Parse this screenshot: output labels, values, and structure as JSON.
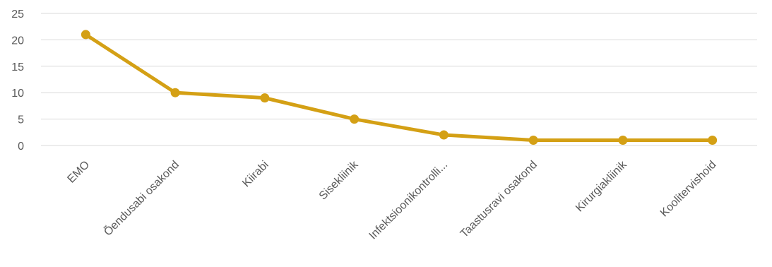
{
  "chart_data": {
    "type": "line",
    "categories": [
      "EMO",
      "Õendusabi osakond",
      "Kiirabi",
      "Sisekliinik",
      "Infektsioonikontrolli...",
      "Taastusravi osakond",
      "Kirurgiakliinik",
      "Koolitervishoid"
    ],
    "series": [
      {
        "values": [
          21,
          10,
          9,
          5,
          2,
          1,
          1,
          1
        ],
        "color": "#d4a015"
      }
    ],
    "title": "",
    "xlabel": "",
    "ylabel": "",
    "ylim": [
      0,
      25
    ],
    "yticks": [
      0,
      5,
      10,
      15,
      20,
      25
    ],
    "grid": true,
    "legend": "none"
  }
}
